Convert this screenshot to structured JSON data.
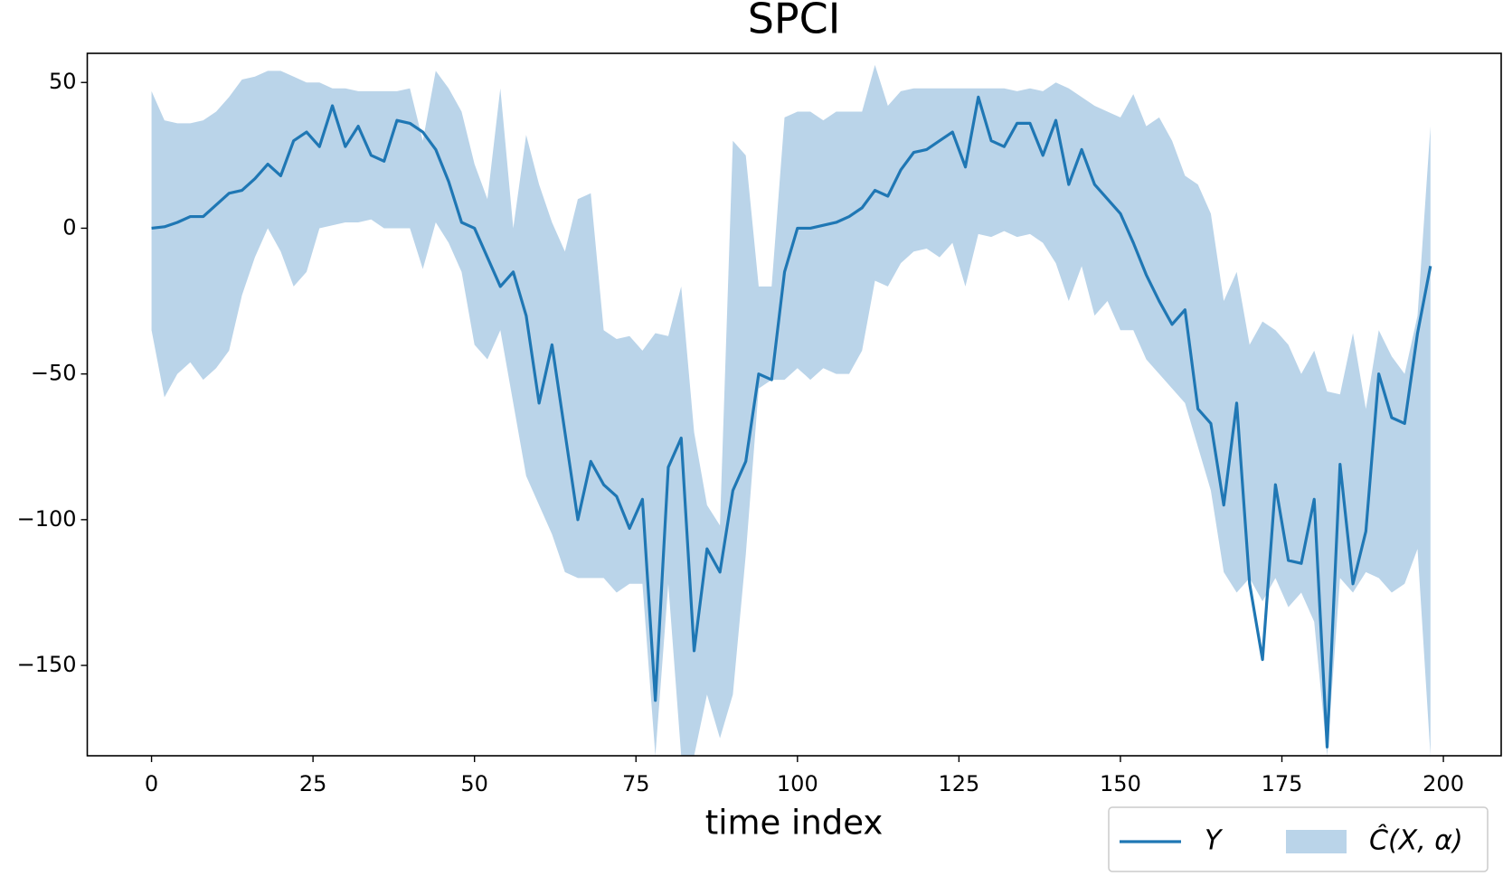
{
  "chart_data": {
    "type": "line",
    "title": "SPCI",
    "x_label": "time index",
    "x": [
      0,
      2,
      4,
      6,
      8,
      10,
      12,
      14,
      16,
      18,
      20,
      22,
      24,
      26,
      28,
      30,
      32,
      34,
      36,
      38,
      40,
      42,
      44,
      46,
      48,
      50,
      52,
      54,
      56,
      58,
      60,
      62,
      64,
      66,
      68,
      70,
      72,
      74,
      76,
      78,
      80,
      82,
      84,
      86,
      88,
      90,
      92,
      94,
      96,
      98,
      100,
      102,
      104,
      106,
      108,
      110,
      112,
      114,
      116,
      118,
      120,
      122,
      124,
      126,
      128,
      130,
      132,
      134,
      136,
      138,
      140,
      142,
      144,
      146,
      148,
      150,
      152,
      154,
      156,
      158,
      160,
      162,
      164,
      166,
      168,
      170,
      172,
      174,
      176,
      178,
      180,
      182,
      184,
      186,
      188,
      190,
      192,
      194,
      196,
      198
    ],
    "series": [
      {
        "name": "Y",
        "color": "#1f77b4",
        "values": [
          0,
          0.5,
          2,
          4,
          4,
          8,
          12,
          13,
          17,
          22,
          18,
          30,
          33,
          28,
          42,
          28,
          35,
          25,
          23,
          37,
          36,
          33,
          27,
          16,
          2,
          0,
          -10,
          -20,
          -15,
          -30,
          -60,
          -40,
          -70,
          -100,
          -80,
          -88,
          -92,
          -103,
          -93,
          -162,
          -82,
          -72,
          -145,
          -110,
          -118,
          -90,
          -80,
          -50,
          -52,
          -15,
          0,
          0,
          1,
          2,
          4,
          7,
          13,
          11,
          20,
          26,
          27,
          30,
          33,
          21,
          45,
          30,
          28,
          36,
          36,
          25,
          37,
          15,
          27,
          15,
          10,
          5,
          -5,
          -16,
          -25,
          -33,
          -28,
          -62,
          -67,
          -95,
          -60,
          -122,
          -148,
          -88,
          -114,
          -115,
          -93,
          -178,
          -81,
          -122,
          -104,
          -50,
          -65,
          -67,
          -36,
          -13
        ]
      }
    ],
    "bands": [
      {
        "name": "Ĉ(X, α)",
        "color": "#bad4e9",
        "upper": [
          47,
          37,
          36,
          36,
          37,
          40,
          45,
          51,
          52,
          54,
          54,
          52,
          50,
          50,
          48,
          48,
          47,
          47,
          47,
          47,
          48,
          30,
          54,
          48,
          40,
          22,
          10,
          48,
          0,
          32,
          15,
          2,
          -8,
          10,
          12,
          -35,
          -38,
          -37,
          -42,
          -36,
          -37,
          -20,
          -70,
          -95,
          -102,
          30,
          25,
          -20,
          -20,
          38,
          40,
          40,
          37,
          40,
          40,
          40,
          56,
          42,
          47,
          48,
          48,
          48,
          48,
          48,
          48,
          48,
          48,
          47,
          48,
          47,
          50,
          48,
          45,
          42,
          40,
          38,
          46,
          35,
          38,
          30,
          18,
          15,
          5,
          -25,
          -15,
          -40,
          -32,
          -35,
          -40,
          -50,
          -42,
          -56,
          -57,
          -36,
          -62,
          -35,
          -44,
          -50,
          -30,
          35
        ],
        "lower": [
          -35,
          -58,
          -50,
          -46,
          -52,
          -48,
          -42,
          -23,
          -10,
          0,
          -8,
          -20,
          -15,
          0,
          1,
          2,
          2,
          3,
          0,
          0,
          0,
          -14,
          2,
          -5,
          -15,
          -40,
          -45,
          -35,
          -60,
          -85,
          -95,
          -105,
          -118,
          -120,
          -120,
          -120,
          -125,
          -122,
          -122,
          -181,
          -122,
          -181,
          -181,
          -160,
          -175,
          -160,
          -112,
          -55,
          -52,
          -52,
          -48,
          -52,
          -48,
          -50,
          -50,
          -42,
          -18,
          -20,
          -12,
          -8,
          -7,
          -10,
          -5,
          -20,
          -2,
          -3,
          -1,
          -3,
          -2,
          -5,
          -12,
          -25,
          -13,
          -30,
          -25,
          -35,
          -35,
          -45,
          -50,
          -55,
          -60,
          -75,
          -90,
          -118,
          -125,
          -120,
          -128,
          -120,
          -130,
          -125,
          -135,
          -181,
          -120,
          -125,
          -118,
          -120,
          -125,
          -122,
          -110,
          -181
        ]
      }
    ],
    "xlim": [
      -9.95,
      208.95
    ],
    "ylim": [
      -181,
      60
    ],
    "xticks": [
      0,
      25,
      50,
      75,
      100,
      125,
      150,
      175,
      200
    ],
    "yticks": [
      {
        "value": -150,
        "label": "−150"
      },
      {
        "value": -100,
        "label": "−100"
      },
      {
        "value": -50,
        "label": "−50"
      },
      0,
      50
    ],
    "legend": "lower right"
  }
}
